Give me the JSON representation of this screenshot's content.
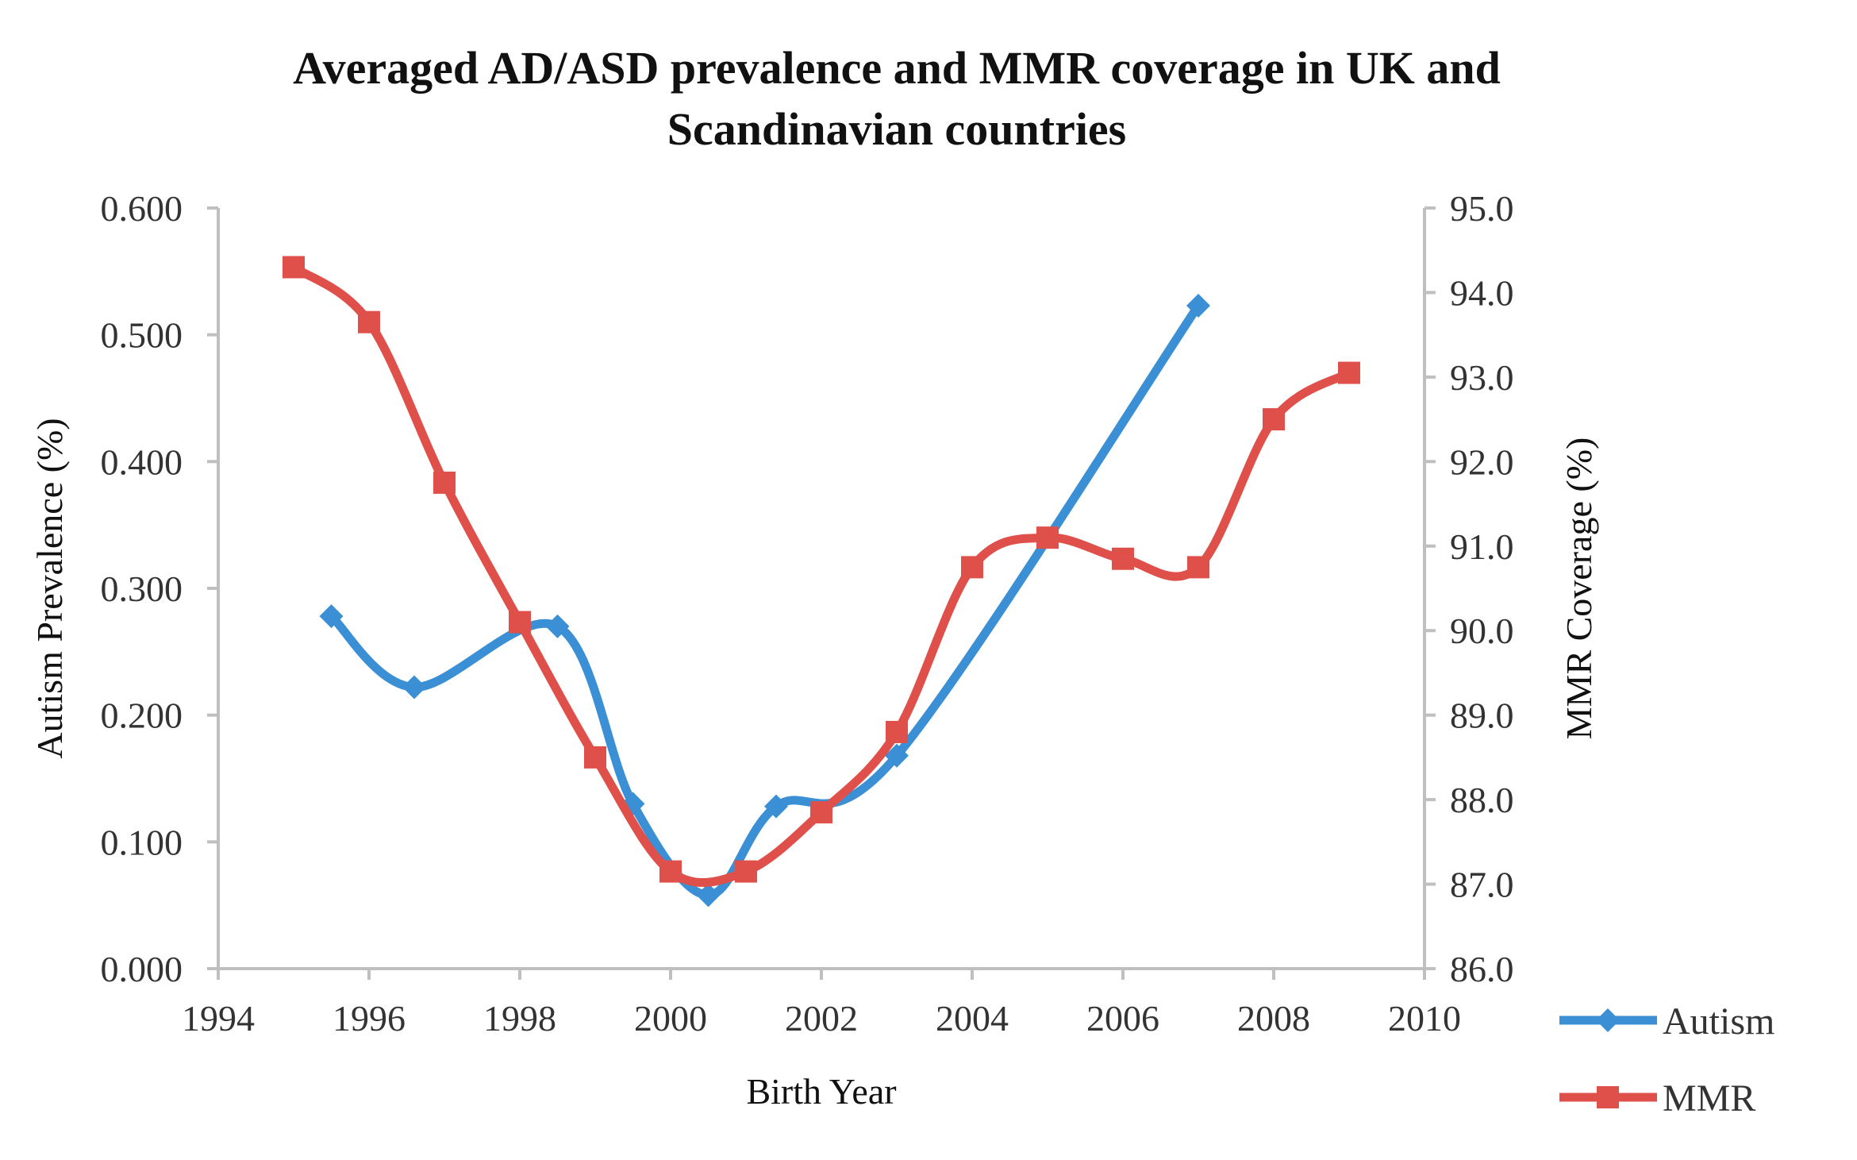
{
  "chart_data": {
    "type": "line",
    "title_lines": [
      "Averaged AD/ASD prevalence and MMR coverage in UK and",
      "Scandinavian countries"
    ],
    "xlabel": "Birth Year",
    "ylabel_left": "Autism Prevalence (%)",
    "ylabel_right": "MMR Coverage (%)",
    "xlim": [
      1994,
      2010
    ],
    "x_ticks": [
      1994,
      1996,
      1998,
      2000,
      2002,
      2004,
      2006,
      2008,
      2010
    ],
    "x_tick_labels": [
      "1994",
      "1996",
      "1998",
      "2000",
      "2002",
      "2004",
      "2006",
      "2008",
      "2010"
    ],
    "ylim_left": [
      0,
      0.6
    ],
    "y_left_ticks": [
      0,
      0.1,
      0.2,
      0.3,
      0.4,
      0.5,
      0.6
    ],
    "y_left_tick_labels": [
      "0.000",
      "0.100",
      "0.200",
      "0.300",
      "0.400",
      "0.500",
      "0.600"
    ],
    "ylim_right": [
      86,
      95
    ],
    "y_right_ticks": [
      86,
      87,
      88,
      89,
      90,
      91,
      92,
      93,
      94,
      95
    ],
    "y_right_tick_labels": [
      "86.0",
      "87.0",
      "88.0",
      "89.0",
      "90.0",
      "91.0",
      "92.0",
      "93.0",
      "94.0",
      "95.0"
    ],
    "grid": false,
    "legend_position": "bottom-right",
    "series": [
      {
        "name": "Autism",
        "axis": "left",
        "color": "#3B8FD4",
        "marker": "diamond",
        "x": [
          1995.5,
          1996.6,
          1998.5,
          1999.5,
          2000.5,
          2001.4,
          2003,
          2007
        ],
        "y": [
          0.278,
          0.222,
          0.27,
          0.13,
          0.058,
          0.128,
          0.168,
          0.523
        ]
      },
      {
        "name": "MMR",
        "axis": "right",
        "color": "#E0504A",
        "marker": "square",
        "x": [
          1995,
          1996,
          1997,
          1998,
          1999,
          2000,
          2001,
          2002,
          2003,
          2004,
          2005,
          2006,
          2007,
          2008,
          2009
        ],
        "y": [
          94.3,
          93.65,
          91.75,
          90.1,
          88.5,
          87.15,
          87.15,
          87.85,
          88.8,
          90.75,
          91.1,
          90.85,
          90.75,
          92.5,
          93.05
        ]
      }
    ]
  }
}
